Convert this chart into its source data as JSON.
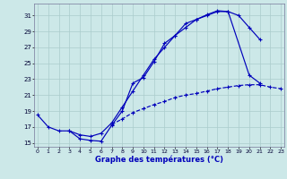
{
  "title": "Graphe des températures (°C)",
  "background_color": "#cce8e8",
  "grid_color": "#aacccc",
  "line_color": "#0000bb",
  "yticks": [
    15,
    17,
    19,
    21,
    23,
    25,
    27,
    29,
    31
  ],
  "xticks": [
    0,
    1,
    2,
    3,
    4,
    5,
    6,
    7,
    8,
    9,
    10,
    11,
    12,
    13,
    14,
    15,
    16,
    17,
    18,
    19,
    20,
    21,
    22,
    23
  ],
  "xlim": [
    -0.3,
    23.3
  ],
  "ylim": [
    14.5,
    32.5
  ],
  "line1": {
    "x": [
      0,
      1,
      2,
      3,
      4,
      5,
      6,
      7,
      8,
      9,
      10,
      11,
      12,
      13,
      14,
      15,
      16,
      17,
      18,
      20,
      21
    ],
    "y": [
      18.5,
      17.0,
      16.5,
      16.5,
      15.5,
      15.3,
      15.2,
      17.2,
      19.0,
      22.5,
      23.2,
      25.2,
      27.5,
      28.5,
      30.0,
      30.5,
      31.1,
      31.6,
      31.5,
      23.5,
      22.5
    ],
    "linestyle": "-"
  },
  "line2": {
    "x": [
      3,
      4,
      5,
      6,
      7,
      8,
      9,
      10,
      11,
      12,
      13,
      14,
      15,
      16,
      17,
      18,
      19,
      20,
      21
    ],
    "y": [
      16.5,
      16.0,
      15.8,
      16.2,
      17.5,
      19.5,
      21.5,
      23.5,
      25.5,
      27.0,
      28.5,
      29.5,
      30.5,
      31.0,
      31.5,
      31.5,
      31.0,
      29.5,
      28.0
    ],
    "linestyle": "-"
  },
  "line3": {
    "x": [
      7,
      8,
      9,
      10,
      11,
      12,
      13,
      14,
      15,
      16,
      17,
      18,
      19,
      20,
      21,
      22,
      23
    ],
    "y": [
      17.3,
      18.0,
      18.8,
      19.3,
      19.8,
      20.2,
      20.7,
      21.0,
      21.2,
      21.5,
      21.8,
      22.0,
      22.2,
      22.3,
      22.3,
      22.0,
      21.8
    ],
    "linestyle": "--"
  }
}
